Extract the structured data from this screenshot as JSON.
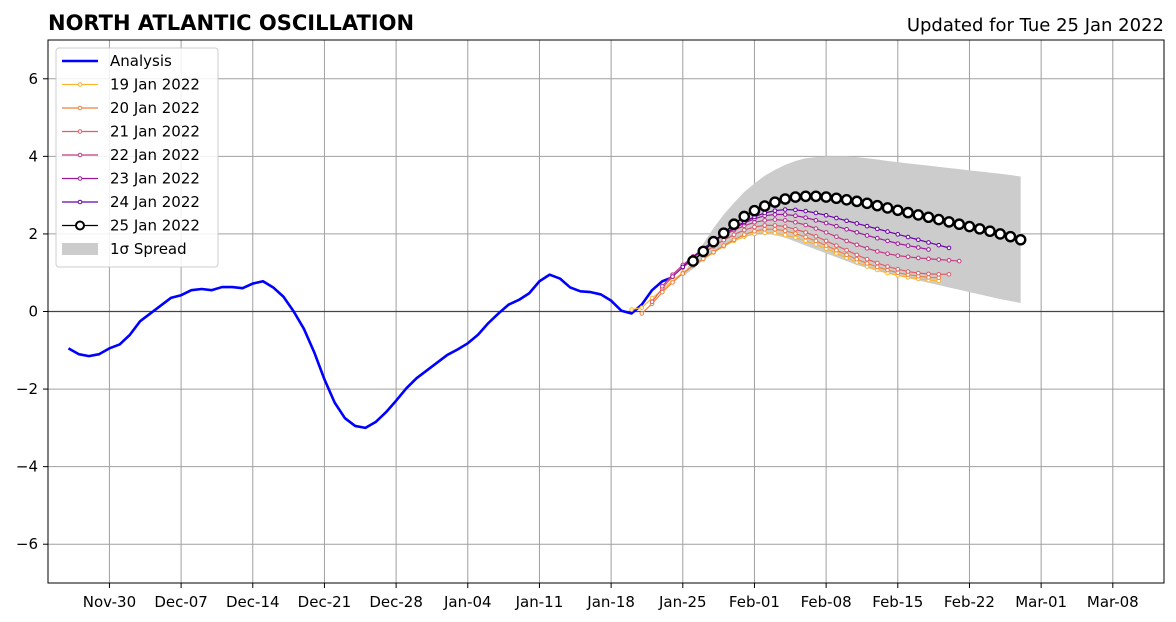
{
  "header": {
    "title": "NORTH ATLANTIC OSCILLATION",
    "updated": "Updated for Tue 25 Jan 2022"
  },
  "chart_data": {
    "type": "line",
    "x_axis": {
      "type": "date",
      "range": [
        "2021-11-24",
        "2022-03-13"
      ],
      "tick_dates": [
        "2021-11-30",
        "2021-12-07",
        "2021-12-14",
        "2021-12-21",
        "2021-12-28",
        "2022-01-04",
        "2022-01-11",
        "2022-01-18",
        "2022-01-25",
        "2022-02-01",
        "2022-02-08",
        "2022-02-15",
        "2022-02-22",
        "2022-03-01",
        "2022-03-08"
      ],
      "tick_labels": [
        "Nov-30",
        "Dec-07",
        "Dec-14",
        "Dec-21",
        "Dec-28",
        "Jan-04",
        "Jan-11",
        "Jan-18",
        "Jan-25",
        "Feb-01",
        "Feb-08",
        "Feb-15",
        "Feb-22",
        "Mar-01",
        "Mar-08"
      ]
    },
    "y_axis": {
      "range": [
        -7,
        7
      ],
      "tick_values": [
        -6,
        -4,
        -2,
        0,
        2,
        4,
        6
      ],
      "tick_labels": [
        "−6",
        "−4",
        "−2",
        "0",
        "2",
        "4",
        "6"
      ]
    },
    "grid": true,
    "zero_line": true,
    "legend_position": "upper-left",
    "analysis": {
      "name": "Analysis",
      "color": "#0000ff",
      "start_date": "2021-11-26",
      "step_days": 1,
      "values": [
        -0.95,
        -1.1,
        -1.15,
        -1.1,
        -0.95,
        -0.85,
        -0.6,
        -0.25,
        -0.05,
        0.15,
        0.35,
        0.42,
        0.55,
        0.58,
        0.55,
        0.63,
        0.63,
        0.6,
        0.72,
        0.78,
        0.62,
        0.38,
        0.0,
        -0.45,
        -1.05,
        -1.75,
        -2.35,
        -2.75,
        -2.95,
        -3.0,
        -2.85,
        -2.6,
        -2.3,
        -1.98,
        -1.72,
        -1.52,
        -1.32,
        -1.12,
        -0.98,
        -0.82,
        -0.6,
        -0.3,
        -0.05,
        0.18,
        0.3,
        0.47,
        0.78,
        0.95,
        0.85,
        0.62,
        0.52,
        0.5,
        0.44,
        0.28,
        0.02,
        -0.05,
        0.18,
        0.55,
        0.78,
        0.88
      ]
    },
    "forecasts": [
      {
        "name": "19 Jan 2022",
        "color": "#fdb42f",
        "start_date": "2022-01-20",
        "step_days": 1,
        "values": [
          0.05,
          0.1,
          0.35,
          0.55,
          0.8,
          1.0,
          1.18,
          1.35,
          1.52,
          1.68,
          1.82,
          1.93,
          2.0,
          2.03,
          2.02,
          1.97,
          1.9,
          1.82,
          1.73,
          1.62,
          1.5,
          1.38,
          1.27,
          1.16,
          1.07,
          0.99,
          0.93,
          0.88,
          0.84,
          0.81,
          0.79
        ]
      },
      {
        "name": "20 Jan 2022",
        "color": "#f0803c",
        "start_date": "2022-01-21",
        "step_days": 1,
        "values": [
          -0.05,
          0.2,
          0.5,
          0.75,
          0.98,
          1.18,
          1.36,
          1.53,
          1.7,
          1.85,
          1.98,
          2.07,
          2.12,
          2.12,
          2.08,
          2.01,
          1.92,
          1.82,
          1.7,
          1.58,
          1.46,
          1.35,
          1.24,
          1.15,
          1.07,
          1.0,
          0.95,
          0.91,
          0.88,
          0.87
        ]
      },
      {
        "name": "21 Jan 2022",
        "color": "#dd5e66",
        "start_date": "2022-01-22",
        "step_days": 1,
        "values": [
          0.25,
          0.6,
          0.9,
          1.13,
          1.33,
          1.51,
          1.68,
          1.84,
          1.98,
          2.1,
          2.18,
          2.22,
          2.22,
          2.19,
          2.12,
          2.04,
          1.94,
          1.82,
          1.7,
          1.58,
          1.46,
          1.35,
          1.25,
          1.16,
          1.09,
          1.03,
          0.99,
          0.97,
          0.96,
          0.96
        ]
      },
      {
        "name": "22 Jan 2022",
        "color": "#c03a83",
        "start_date": "2022-01-23",
        "step_days": 1,
        "values": [
          0.65,
          0.95,
          1.2,
          1.42,
          1.62,
          1.8,
          1.96,
          2.1,
          2.21,
          2.3,
          2.35,
          2.37,
          2.35,
          2.3,
          2.23,
          2.14,
          2.04,
          1.93,
          1.82,
          1.72,
          1.63,
          1.55,
          1.49,
          1.44,
          1.41,
          1.38,
          1.36,
          1.34,
          1.32,
          1.3
        ]
      },
      {
        "name": "23 Jan 2022",
        "color": "#9c179e",
        "start_date": "2022-01-24",
        "step_days": 1,
        "values": [
          0.9,
          1.15,
          1.38,
          1.6,
          1.8,
          1.98,
          2.14,
          2.28,
          2.39,
          2.47,
          2.5,
          2.5,
          2.47,
          2.42,
          2.35,
          2.28,
          2.2,
          2.12,
          2.04,
          1.96,
          1.89,
          1.82,
          1.75,
          1.7,
          1.65,
          1.6
        ]
      },
      {
        "name": "24 Jan 2022",
        "color": "#6a00a8",
        "start_date": "2022-01-25",
        "step_days": 1,
        "values": [
          1.15,
          1.4,
          1.62,
          1.82,
          2.0,
          2.16,
          2.31,
          2.44,
          2.54,
          2.6,
          2.63,
          2.62,
          2.59,
          2.54,
          2.48,
          2.41,
          2.34,
          2.27,
          2.2,
          2.13,
          2.06,
          1.99,
          1.92,
          1.85,
          1.78,
          1.71,
          1.64
        ]
      },
      {
        "name": "25 Jan 2022",
        "color": "#000000",
        "start_date": "2022-01-26",
        "step_days": 1,
        "values": [
          1.3,
          1.55,
          1.8,
          2.02,
          2.25,
          2.45,
          2.6,
          2.72,
          2.82,
          2.9,
          2.95,
          2.97,
          2.97,
          2.95,
          2.92,
          2.88,
          2.84,
          2.79,
          2.73,
          2.67,
          2.61,
          2.55,
          2.49,
          2.43,
          2.37,
          2.31,
          2.25,
          2.19,
          2.13,
          2.07,
          2.0,
          1.93,
          1.85
        ]
      }
    ],
    "spread": {
      "name": "1σ Spread",
      "color": "#cccccc",
      "start_date": "2022-01-25",
      "step_days": 1,
      "upper": [
        0.95,
        1.35,
        1.75,
        2.15,
        2.5,
        2.8,
        3.08,
        3.3,
        3.5,
        3.65,
        3.78,
        3.88,
        3.95,
        3.98,
        4.0,
        4.0,
        4.0,
        3.98,
        3.95,
        3.92,
        3.88,
        3.85,
        3.82,
        3.79,
        3.76,
        3.73,
        3.7,
        3.67,
        3.64,
        3.61,
        3.58,
        3.55,
        3.52,
        3.48
      ],
      "lower": [
        0.9,
        1.1,
        1.32,
        1.52,
        1.7,
        1.85,
        1.95,
        2.0,
        2.0,
        1.97,
        1.9,
        1.8,
        1.7,
        1.6,
        1.5,
        1.4,
        1.3,
        1.2,
        1.12,
        1.05,
        0.98,
        0.92,
        0.86,
        0.8,
        0.74,
        0.68,
        0.62,
        0.56,
        0.5,
        0.44,
        0.38,
        0.32,
        0.27,
        0.22
      ]
    }
  }
}
